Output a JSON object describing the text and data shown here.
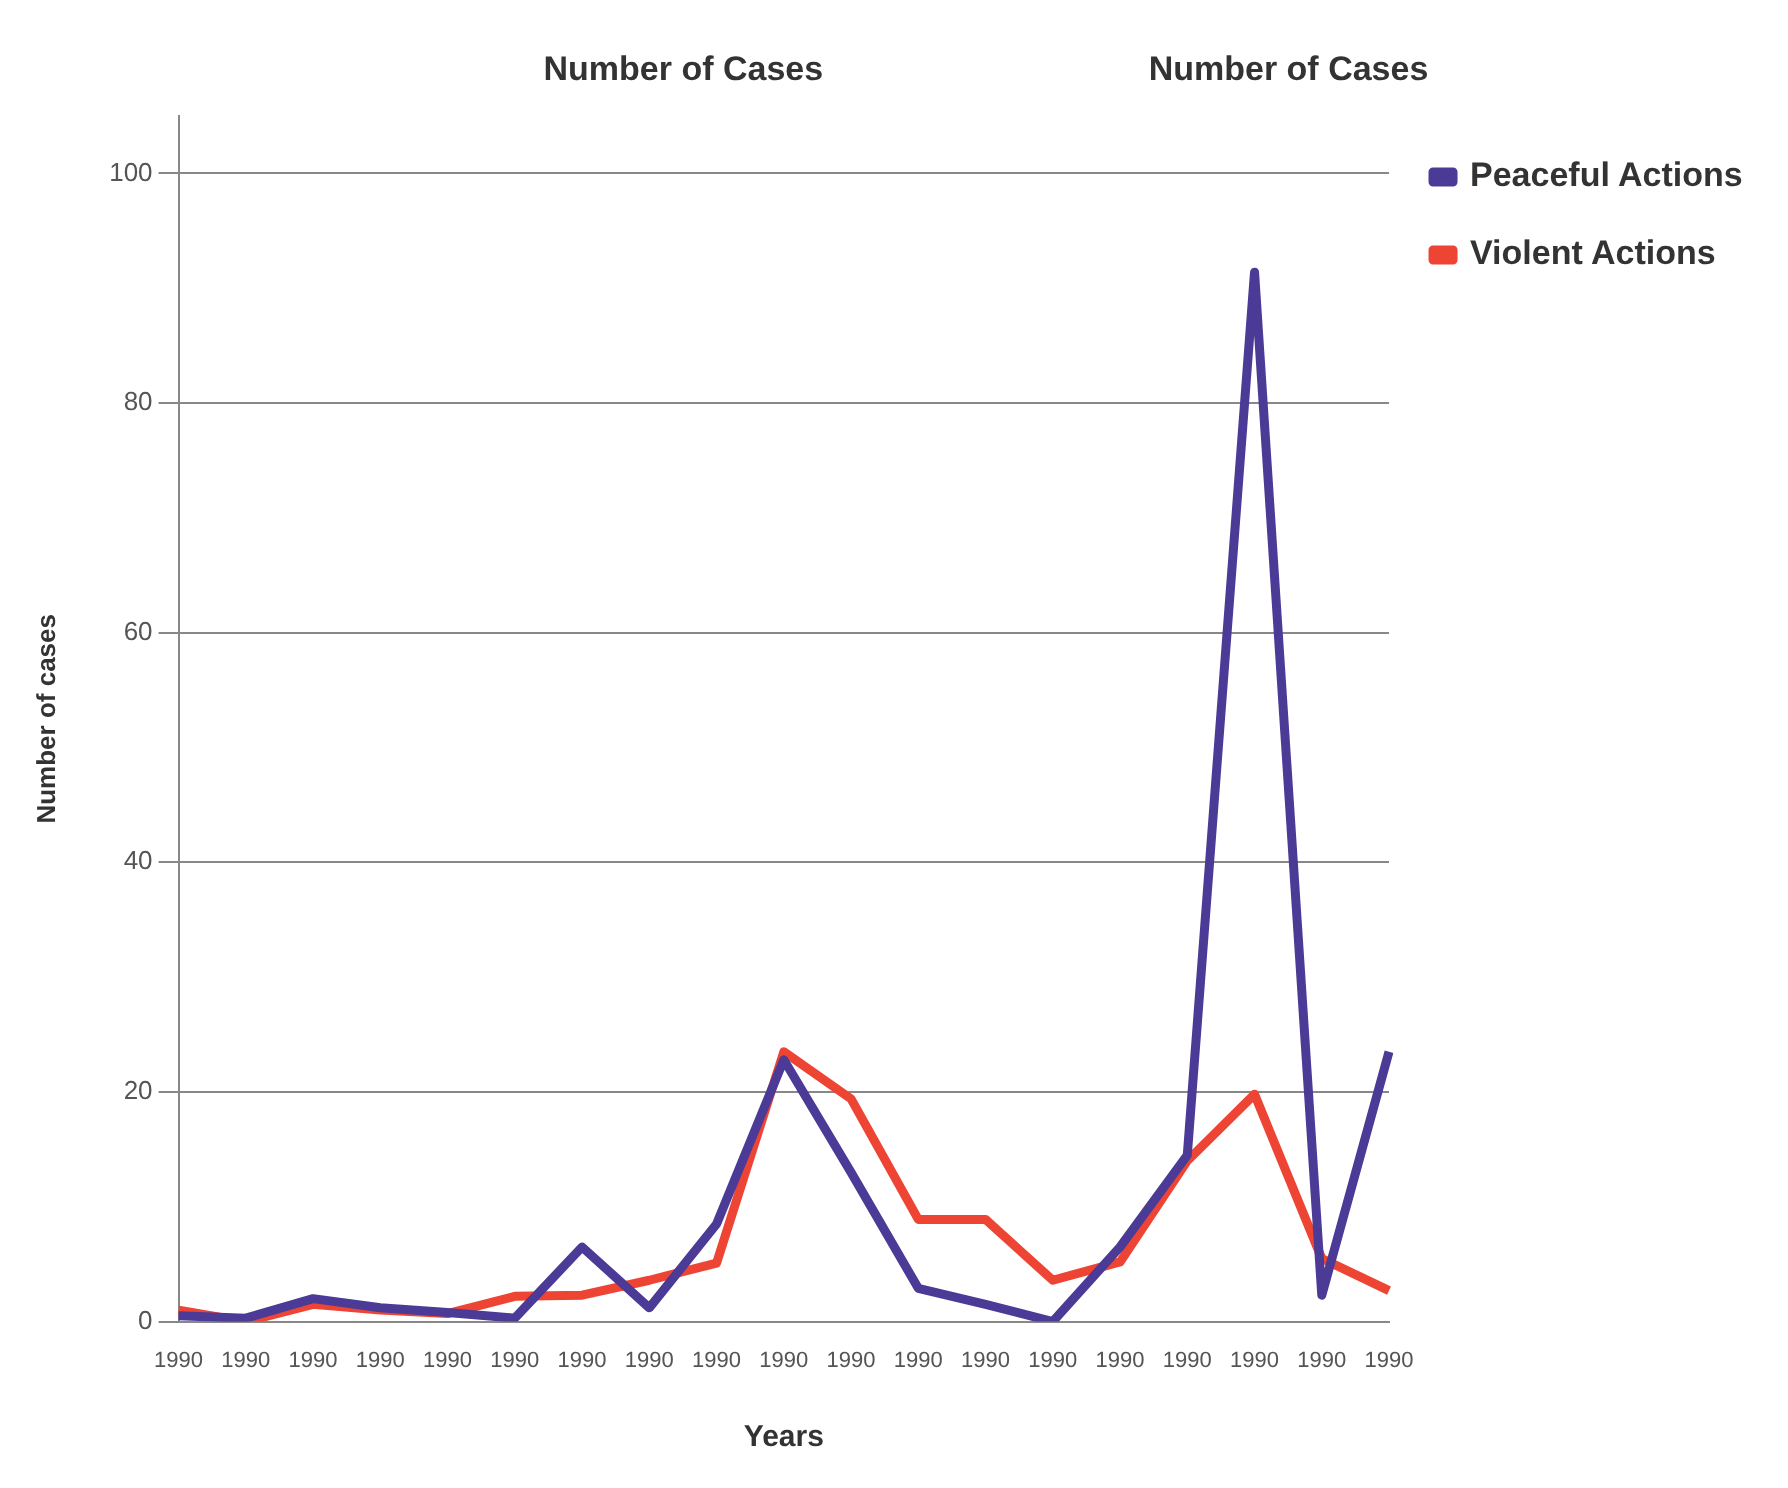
{
  "chart_data": {
    "type": "line",
    "xlabel": "Years",
    "ylabel": "Number of cases",
    "annotations": [
      "Number of Cases",
      "Number of Cases"
    ],
    "categories": [
      "1990",
      "1990",
      "1990",
      "1990",
      "1990",
      "1990",
      "1990",
      "1990",
      "1990",
      "1990",
      "1990",
      "1990",
      "1990",
      "1990",
      "1990",
      "1990",
      "1990",
      "1990",
      "1990"
    ],
    "series": [
      {
        "name": "Peaceful Actions",
        "color": "#4b3a96",
        "values": [
          0.5,
          0.3,
          2,
          1.2,
          0.8,
          0.3,
          6.5,
          1.2,
          8.5,
          22.8,
          13,
          2.9,
          1.5,
          0,
          6.5,
          14.5,
          91.4,
          2.3,
          23.5
        ]
      },
      {
        "name": "Violent Actions",
        "color": "#ee4433",
        "values": [
          1,
          0,
          1.5,
          1,
          0.7,
          2.2,
          2.3,
          3.6,
          5.1,
          23.5,
          19.4,
          8.9,
          8.9,
          3.6,
          5.2,
          14,
          19.8,
          5.5,
          2.7
        ]
      }
    ],
    "ylim": [
      0,
      105
    ],
    "yticks": [
      0,
      20,
      40,
      60,
      80,
      100
    ],
    "grid": "y",
    "legend": "top right",
    "marker": "none",
    "line_style": "solid"
  }
}
